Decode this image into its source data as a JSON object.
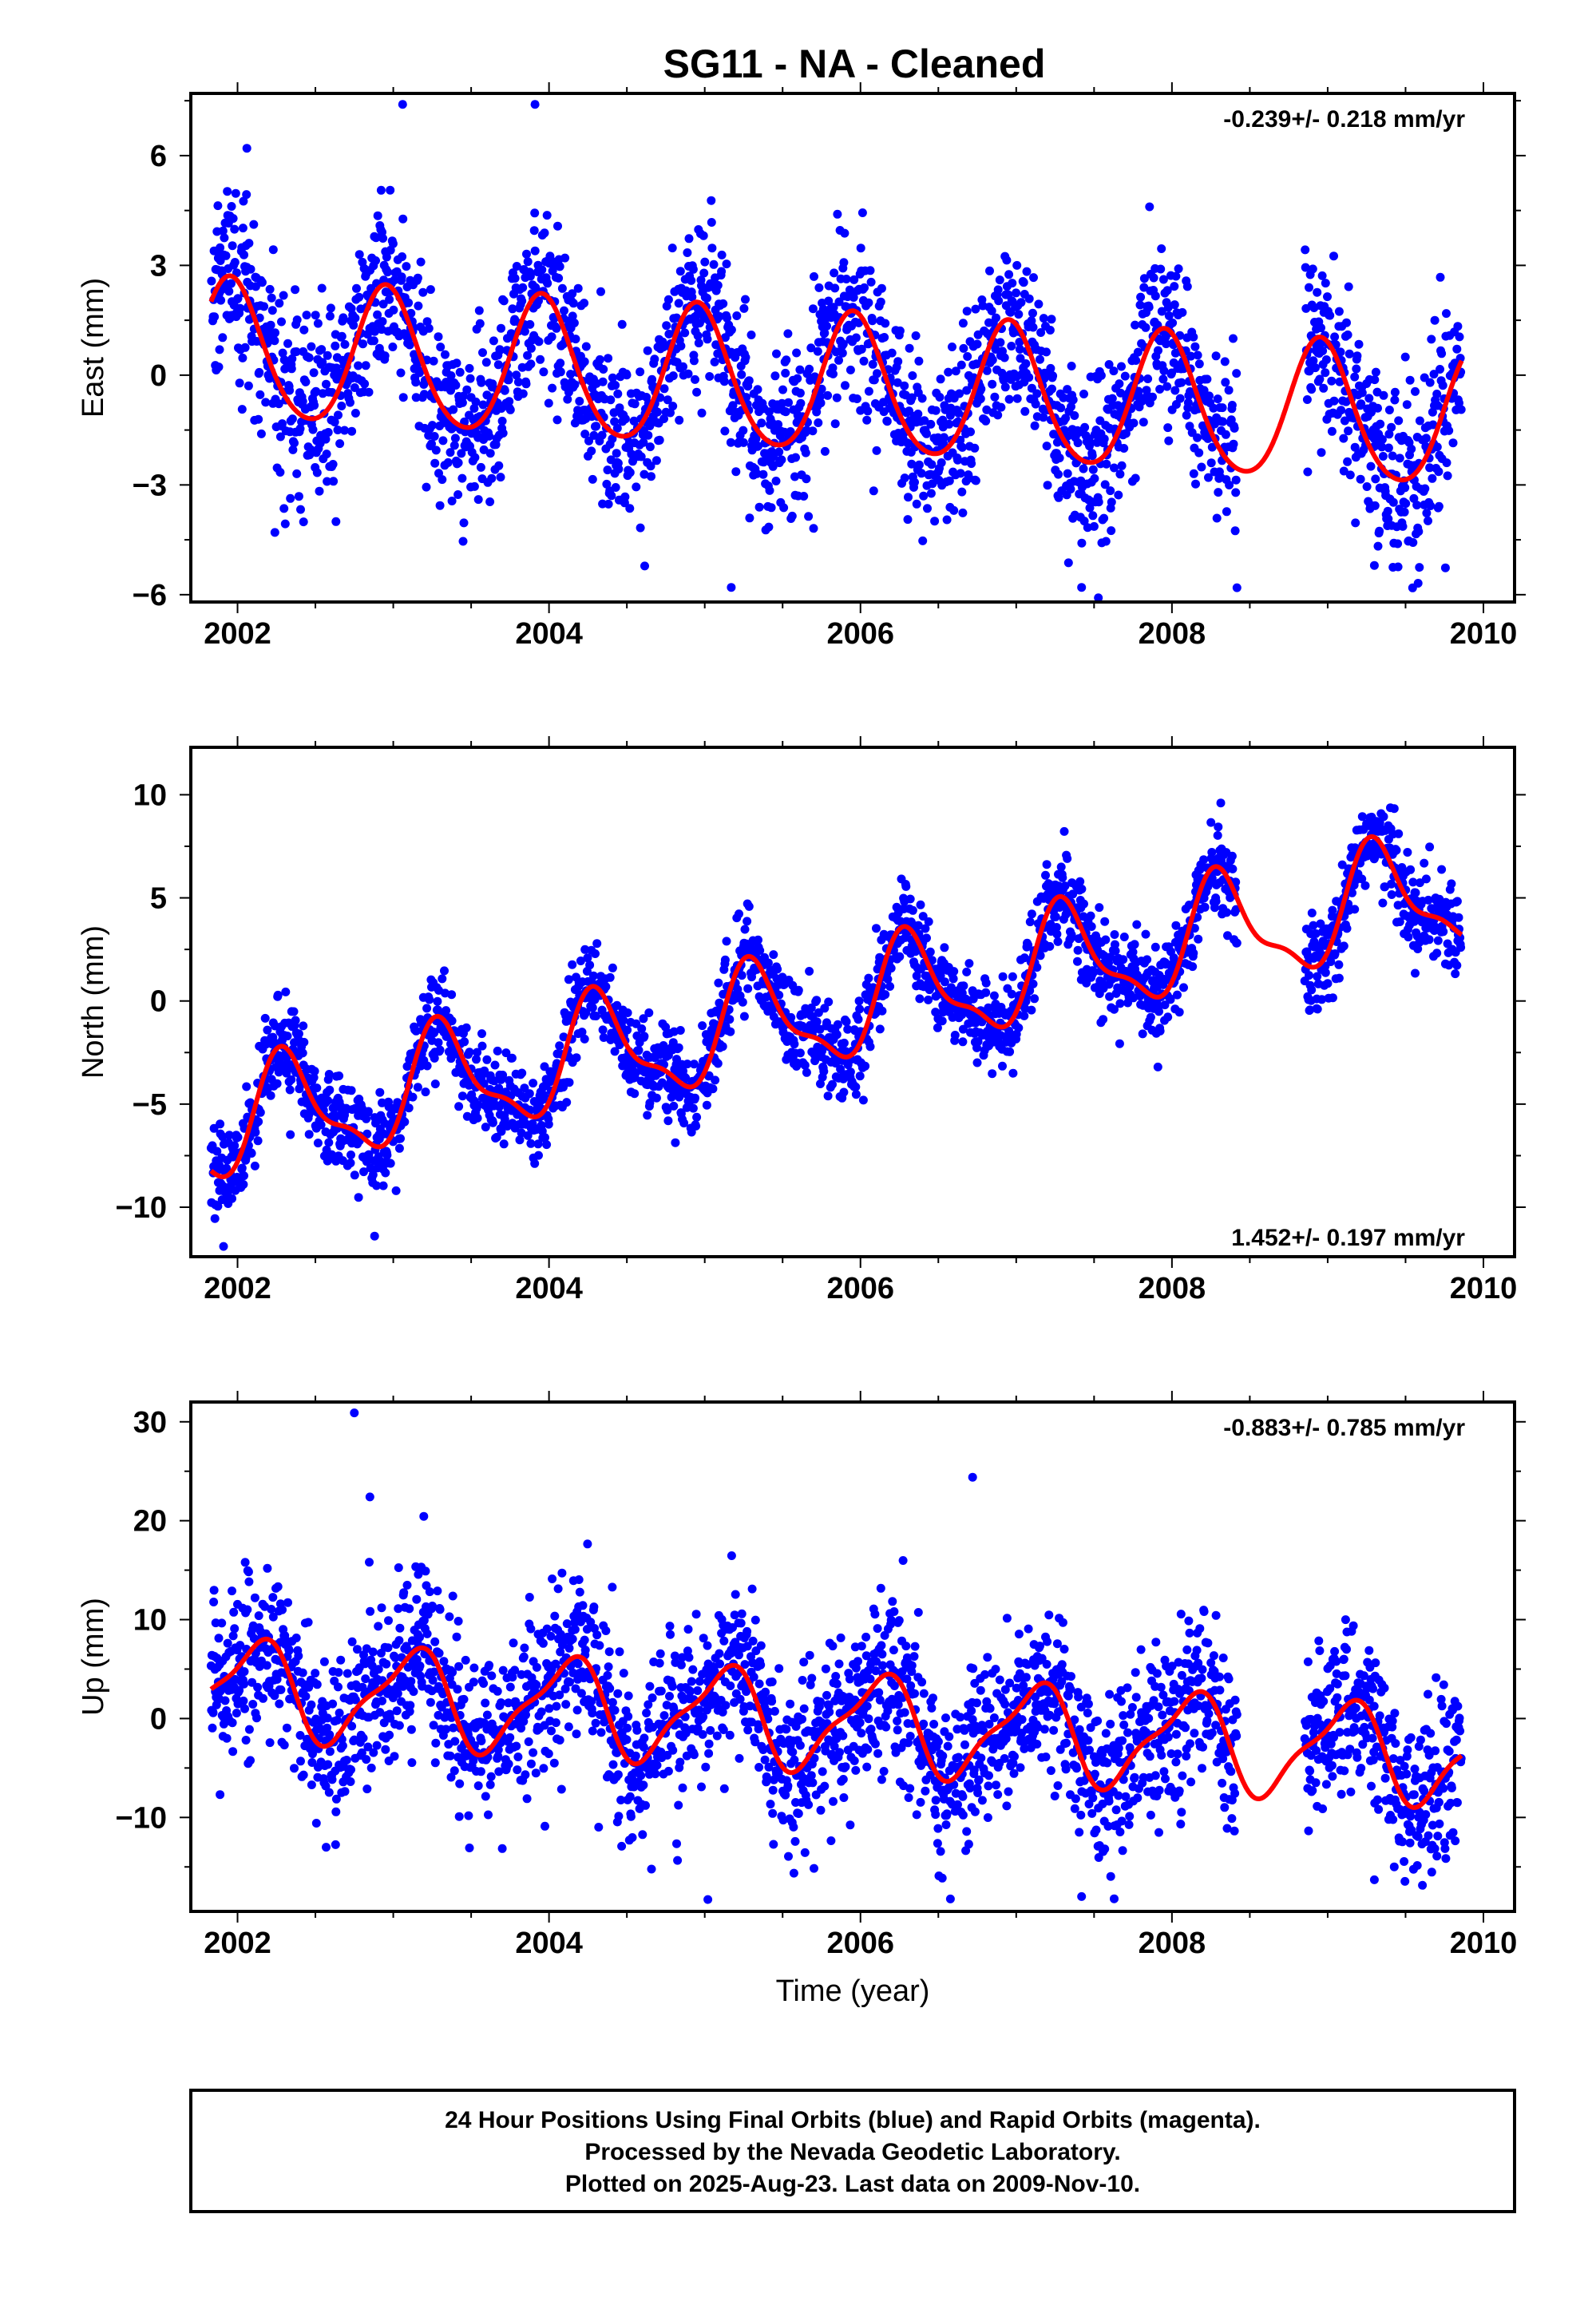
{
  "title": "SG11  - NA - Cleaned",
  "footer": {
    "line1": "24 Hour Positions Using Final Orbits (blue) and Rapid Orbits (magenta).",
    "line2": "Processed by the Nevada Geodetic Laboratory.",
    "line3": "Plotted on 2025-Aug-23. Last data on 2009-Nov-10."
  },
  "colors": {
    "points": "#0000ff",
    "model": "#ff0000",
    "frame": "#000000"
  },
  "chart_data": [
    {
      "type": "scatter",
      "component": "east",
      "ylabel": "East (mm)",
      "xlabel": "",
      "rate_label": "-0.239+/- 0.218 mm/yr",
      "rate_position": "top-right",
      "xlim": [
        2001.7,
        2010.2
      ],
      "ylim": [
        -6.2,
        7.7
      ],
      "xticks": [
        2002,
        2004,
        2006,
        2008,
        2010
      ],
      "yticks": [
        -6,
        -3,
        0,
        3,
        6
      ],
      "data_start": 2001.83,
      "data_end": 2009.86,
      "data_gap": [
        2008.42,
        2008.85
      ],
      "model": {
        "t0": 2005.8,
        "rate": -0.239,
        "offset": -0.3,
        "annual_sin": -0.5,
        "annual_cos": 1.82,
        "semiannual_sin": -0.15,
        "semiannual_cos": 0.15
      },
      "scatter_sd": 1.2,
      "outliers": [
        [
          2002.06,
          6.2
        ],
        [
          2002.24,
          -4.3
        ],
        [
          2003.06,
          7.4
        ],
        [
          2003.91,
          7.4
        ],
        [
          2005.17,
          -5.8
        ],
        [
          2007.42,
          -5.8
        ],
        [
          2009.3,
          -5.2
        ]
      ],
      "grid": false,
      "legend": "none"
    },
    {
      "type": "scatter",
      "component": "north",
      "ylabel": "North (mm)",
      "xlabel": "",
      "rate_label": "1.452+/- 0.197 mm/yr",
      "rate_position": "bottom-right",
      "xlim": [
        2001.7,
        2010.2
      ],
      "ylim": [
        -12.4,
        12.3
      ],
      "xticks": [
        2002,
        2004,
        2006,
        2008,
        2010
      ],
      "yticks": [
        -10,
        -5,
        0,
        5,
        10
      ],
      "data_start": 2001.83,
      "data_end": 2009.86,
      "data_gap": [
        2008.42,
        2008.85
      ],
      "model": {
        "t0": 2005.8,
        "rate": 1.452,
        "offset": -0.4,
        "annual_sin": 2.35,
        "annual_cos": -1.0,
        "semiannual_sin": 0.0,
        "semiannual_cos": -0.88
      },
      "scatter_sd": 1.1,
      "outliers": [
        [
          2001.91,
          -11.9
        ],
        [
          2002.88,
          -11.4
        ],
        [
          2007.91,
          -3.2
        ],
        [
          2008.93,
          0.1
        ]
      ],
      "grid": false,
      "legend": "none"
    },
    {
      "type": "scatter",
      "component": "up",
      "ylabel": "Up (mm)",
      "xlabel": "Time (year)",
      "rate_label": "-0.883+/- 0.785 mm/yr",
      "rate_position": "top-right",
      "xlim": [
        2001.7,
        2010.2
      ],
      "ylim": [
        -19.5,
        32.0
      ],
      "xticks": [
        2002,
        2004,
        2006,
        2008,
        2010
      ],
      "yticks": [
        -10,
        0,
        10,
        20,
        30
      ],
      "data_start": 2001.83,
      "data_end": 2009.86,
      "data_gap": [
        2008.42,
        2008.85
      ],
      "model": {
        "t0": 2005.8,
        "rate": -0.883,
        "offset": -0.3,
        "annual_sin": 3.05,
        "annual_cos": 3.48,
        "semiannual_sin": 0.0,
        "semiannual_cos": -1.4
      },
      "scatter_sd": 4.2,
      "outliers": [
        [
          2002.75,
          30.9
        ],
        [
          2002.85,
          22.4
        ],
        [
          2006.72,
          24.4
        ],
        [
          2005.02,
          -18.3
        ],
        [
          2007.42,
          -18.0
        ],
        [
          2009.3,
          -16.3
        ]
      ],
      "grid": false,
      "legend": "none"
    }
  ]
}
